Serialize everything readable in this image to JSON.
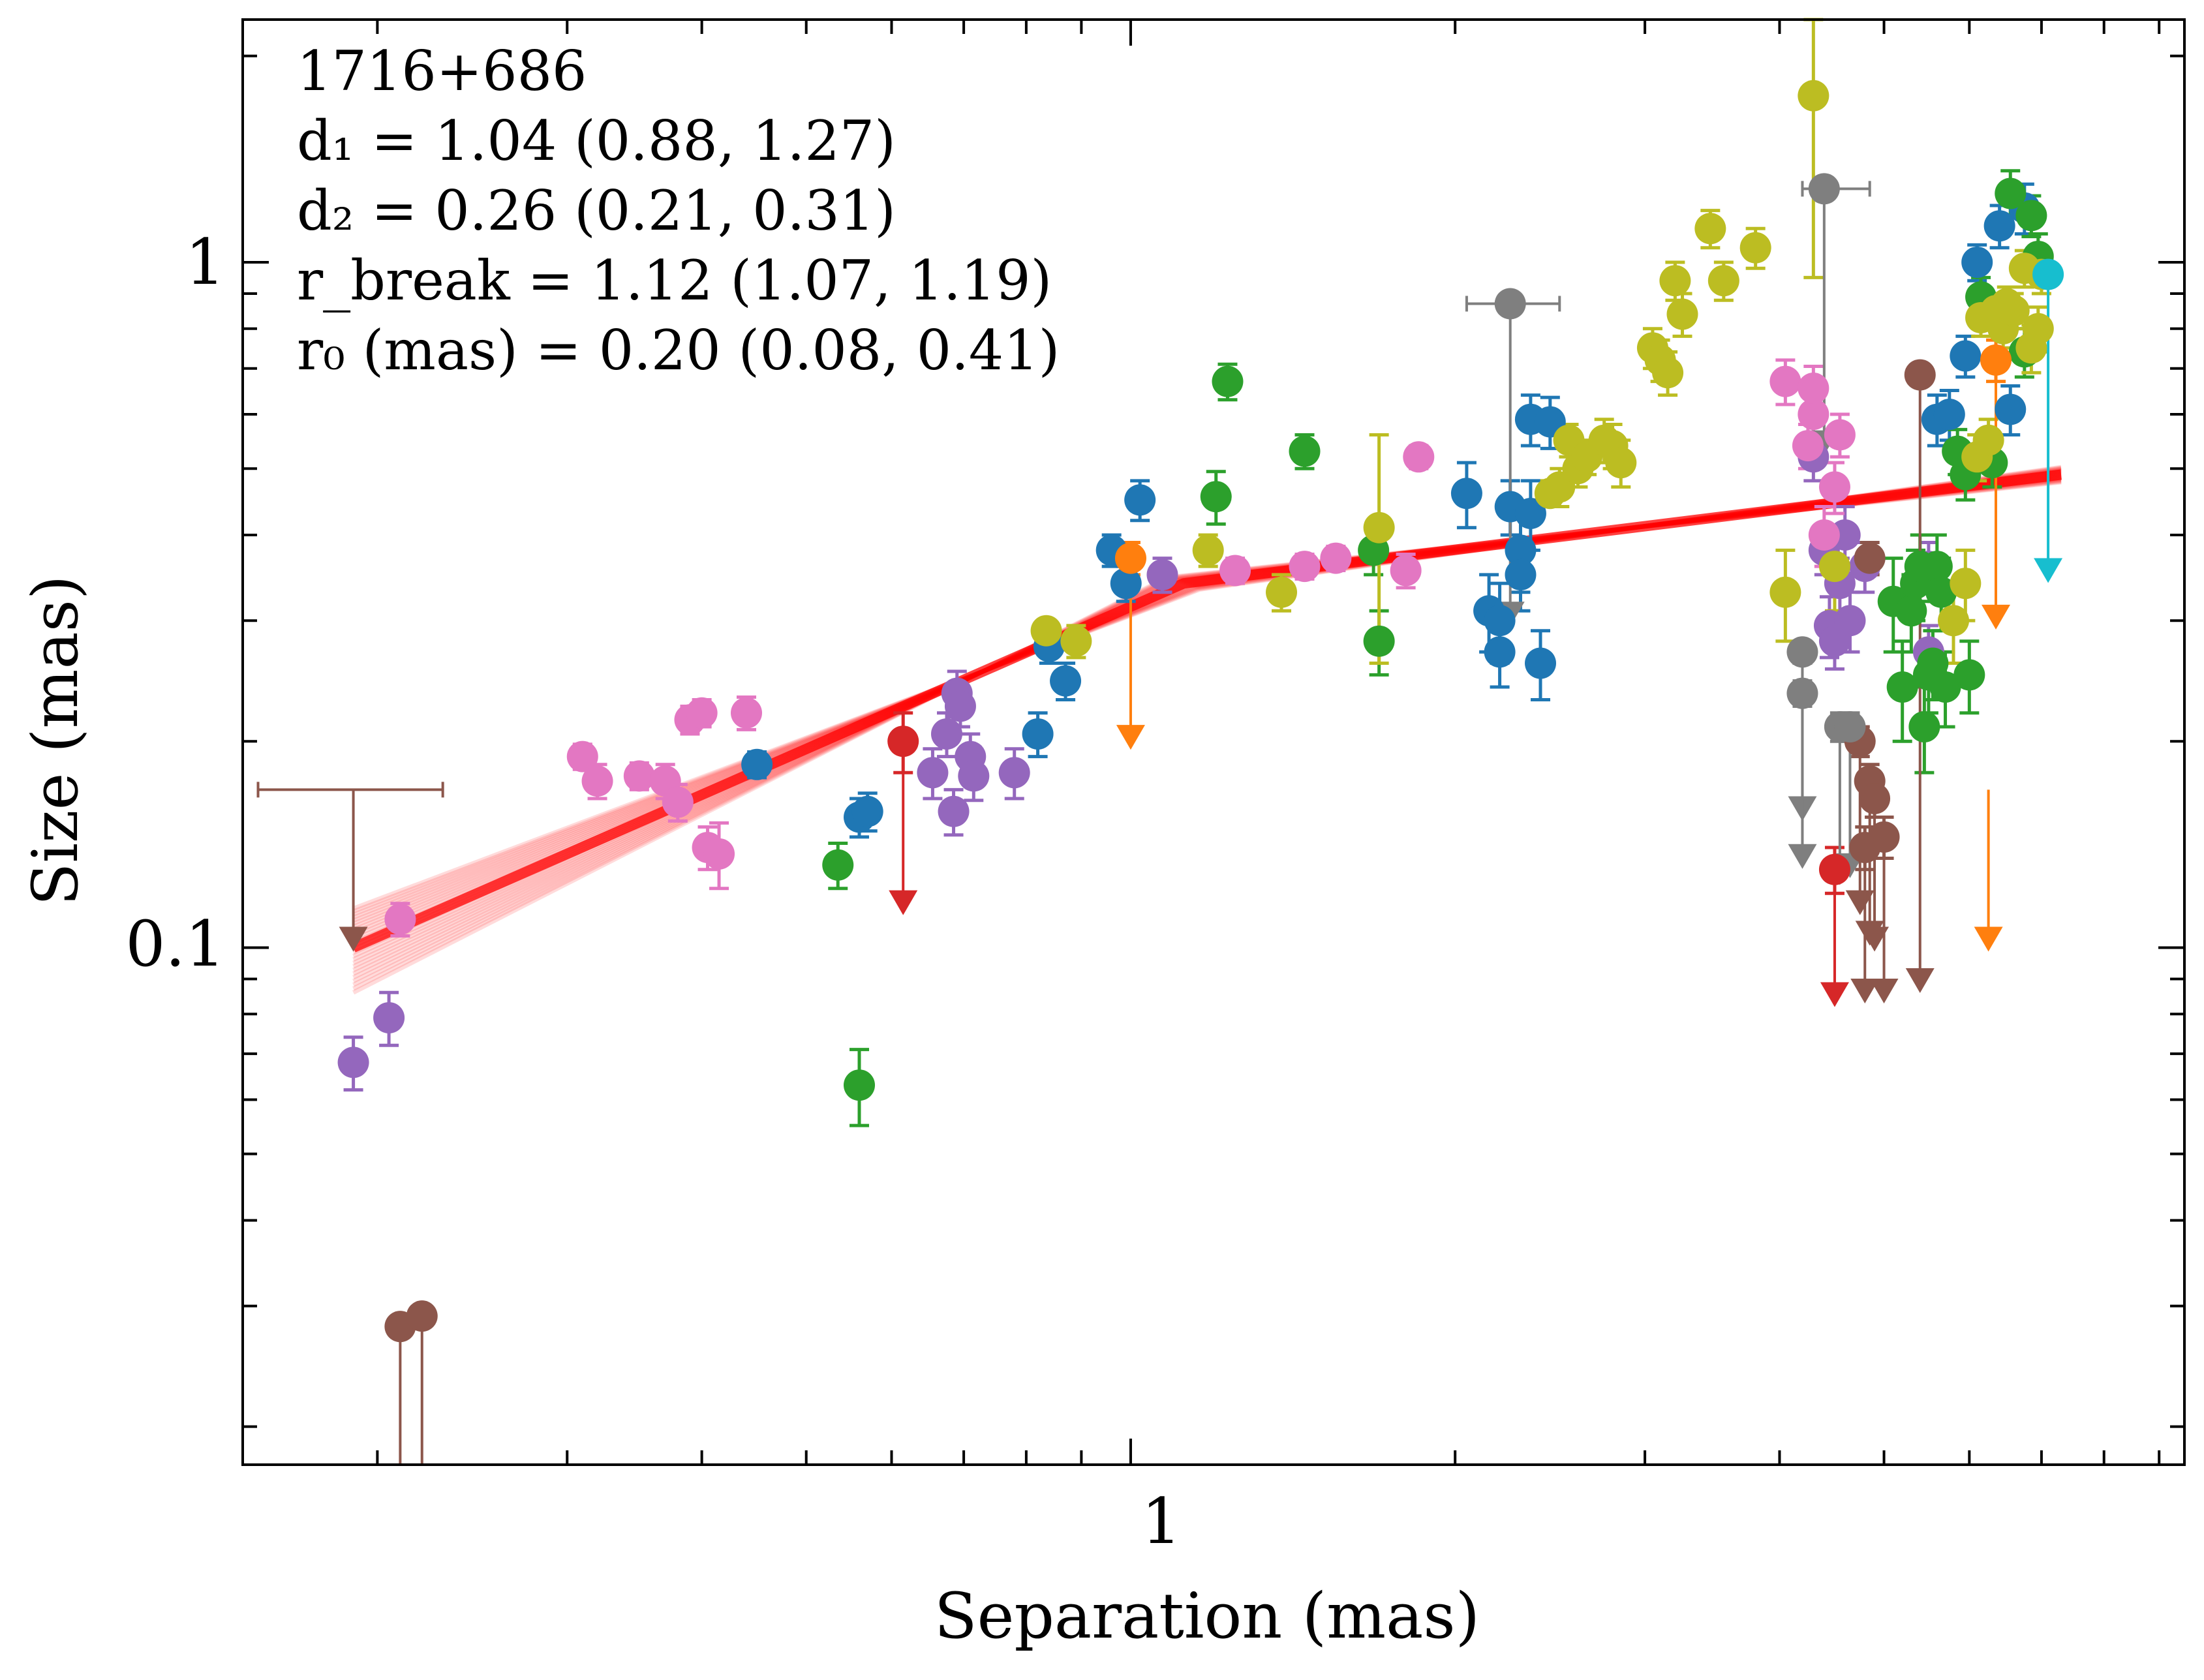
{
  "chart_data": {
    "type": "scatter",
    "source_label": "1716+686",
    "xlabel": "Separation (mas)",
    "ylabel": "Size (mas)",
    "xscale": "log",
    "yscale": "log",
    "xlim": [
      0.15,
      9.5
    ],
    "ylim": [
      0.0176,
      2.26
    ],
    "x_ticks": [
      {
        "value": 1,
        "label": "1"
      }
    ],
    "y_ticks": [
      {
        "value": 0.1,
        "label": "0.1"
      },
      {
        "value": 1,
        "label": "1"
      }
    ],
    "grid": false,
    "annotations": [
      {
        "name": "source",
        "text": "1716+686"
      },
      {
        "name": "d1",
        "text": "d₁ = 1.04 (0.88, 1.27)"
      },
      {
        "name": "d2",
        "text": "d₂ = 0.26 (0.21, 0.31)"
      },
      {
        "name": "rbreak",
        "text": "r_break = 1.12 (1.07, 1.19)"
      },
      {
        "name": "r0",
        "text": "r₀ (mas) = 0.20 (0.08, 0.41)"
      }
    ],
    "fit": {
      "model": "broken power law",
      "break_x": 1.12,
      "segments": [
        [
          0.19,
          0.1
        ],
        [
          1.12,
          0.34
        ],
        [
          7.3,
          0.49
        ]
      ],
      "color": "#ff0000"
    },
    "series": [
      {
        "name": "purple",
        "color": "#9467bd",
        "points": [
          [
            0.19,
            0.068,
            0.006
          ],
          [
            0.205,
            0.079,
            0.007
          ],
          [
            0.655,
            0.18,
            0.015
          ],
          [
            0.675,
            0.205,
            0.015
          ],
          [
            0.685,
            0.158,
            0.012
          ],
          [
            0.69,
            0.235,
            0.018
          ],
          [
            0.695,
            0.225,
            0.015
          ],
          [
            0.71,
            0.19,
            0.015
          ],
          [
            0.715,
            0.178,
            0.014
          ],
          [
            0.78,
            0.18,
            0.015
          ],
          [
            1.07,
            0.35,
            0.02
          ],
          [
            4.3,
            0.52,
            0.04
          ],
          [
            4.4,
            0.38,
            0.03
          ],
          [
            4.45,
            0.295,
            0.03
          ],
          [
            4.5,
            0.28,
            0.025
          ],
          [
            4.55,
            0.34,
            0.03
          ],
          [
            4.6,
            0.4,
            0.04
          ],
          [
            4.65,
            0.3,
            0.03
          ],
          [
            4.8,
            0.36,
            0.03
          ],
          [
            5.5,
            0.36,
            0.03
          ],
          [
            5.5,
            0.27,
            0.025
          ]
        ]
      },
      {
        "name": "pink",
        "color": "#e377c2",
        "points": [
          [
            0.21,
            0.11,
            0.006
          ],
          [
            0.31,
            0.19,
            0.008
          ],
          [
            0.32,
            0.175,
            0.01
          ],
          [
            0.35,
            0.178,
            0.008
          ],
          [
            0.37,
            0.175,
            0.01
          ],
          [
            0.38,
            0.163,
            0.01
          ],
          [
            0.39,
            0.215,
            0.01
          ],
          [
            0.4,
            0.22,
            0.01
          ],
          [
            0.405,
            0.14,
            0.01
          ],
          [
            0.415,
            0.137,
            0.015
          ],
          [
            0.44,
            0.22,
            0.012
          ],
          [
            1.25,
            0.355,
            0.015
          ],
          [
            1.45,
            0.36,
            0.015
          ],
          [
            1.55,
            0.37,
            0.015
          ],
          [
            1.8,
            0.355,
            0.02
          ],
          [
            1.85,
            0.52,
            0.02
          ],
          [
            4.05,
            0.67,
            0.05
          ],
          [
            4.25,
            0.54,
            0.04
          ],
          [
            4.3,
            0.6,
            0.05
          ],
          [
            4.3,
            0.655,
            0.05
          ],
          [
            4.4,
            0.4,
            0.04
          ],
          [
            4.5,
            0.47,
            0.04
          ],
          [
            4.55,
            0.56,
            0.04
          ]
        ]
      },
      {
        "name": "blue",
        "color": "#1f77b4",
        "points": [
          [
            0.45,
            0.185,
            0.008
          ],
          [
            0.56,
            0.155,
            0.01
          ],
          [
            0.57,
            0.158,
            0.01
          ],
          [
            0.82,
            0.205,
            0.015
          ],
          [
            0.84,
            0.275,
            0.015
          ],
          [
            0.87,
            0.245,
            0.015
          ],
          [
            0.96,
            0.38,
            0.02
          ],
          [
            0.99,
            0.34,
            0.02
          ],
          [
            1.02,
            0.45,
            0.03
          ],
          [
            2.05,
            0.46,
            0.05
          ],
          [
            2.15,
            0.31,
            0.04
          ],
          [
            2.2,
            0.3,
            0.04
          ],
          [
            2.2,
            0.27,
            0.03
          ],
          [
            2.25,
            0.44,
            0.04
          ],
          [
            2.3,
            0.38,
            0.05
          ],
          [
            2.3,
            0.35,
            0.04
          ],
          [
            2.35,
            0.43,
            0.05
          ],
          [
            2.35,
            0.59,
            0.05
          ],
          [
            2.4,
            0.26,
            0.03
          ],
          [
            2.45,
            0.585,
            0.05
          ],
          [
            5.6,
            0.59,
            0.05
          ],
          [
            5.75,
            0.6,
            0.05
          ],
          [
            5.95,
            0.73,
            0.05
          ],
          [
            6.1,
            1.0,
            0.06
          ],
          [
            6.4,
            1.13,
            0.08
          ],
          [
            6.55,
            0.61,
            0.05
          ],
          [
            6.75,
            1.2,
            0.1
          ]
        ]
      },
      {
        "name": "green",
        "color": "#2ca02c",
        "points": [
          [
            0.535,
            0.132,
            0.01
          ],
          [
            0.56,
            0.063,
            0.008
          ],
          [
            1.2,
            0.455,
            0.04
          ],
          [
            1.23,
            0.67,
            0.04
          ],
          [
            1.45,
            0.53,
            0.03
          ],
          [
            1.68,
            0.38,
            0.03
          ],
          [
            1.7,
            0.28,
            0.03
          ],
          [
            5.1,
            0.32,
            0.05
          ],
          [
            5.2,
            0.24,
            0.04
          ],
          [
            5.3,
            0.31,
            0.04
          ],
          [
            5.35,
            0.34,
            0.04
          ],
          [
            5.4,
            0.36,
            0.04
          ],
          [
            5.45,
            0.21,
            0.03
          ],
          [
            5.5,
            0.25,
            0.03
          ],
          [
            5.55,
            0.26,
            0.03
          ],
          [
            5.6,
            0.36,
            0.04
          ],
          [
            5.65,
            0.33,
            0.04
          ],
          [
            5.7,
            0.24,
            0.03
          ],
          [
            5.85,
            0.53,
            0.04
          ],
          [
            5.95,
            0.49,
            0.04
          ],
          [
            6.0,
            0.25,
            0.03
          ],
          [
            6.15,
            0.89,
            0.06
          ],
          [
            6.3,
            0.51,
            0.04
          ],
          [
            6.55,
            1.26,
            0.1
          ],
          [
            6.75,
            0.74,
            0.06
          ],
          [
            6.85,
            1.17,
            0.08
          ],
          [
            6.95,
            1.02,
            0.08
          ]
        ]
      },
      {
        "name": "olive",
        "color": "#bcbd22",
        "points": [
          [
            0.835,
            0.29,
            0.01
          ],
          [
            0.89,
            0.28,
            0.015
          ],
          [
            1.18,
            0.38,
            0.02
          ],
          [
            1.38,
            0.33,
            0.02
          ],
          [
            1.7,
            0.41,
            0.15
          ],
          [
            2.45,
            0.46,
            0.02
          ],
          [
            2.5,
            0.47,
            0.03
          ],
          [
            2.55,
            0.55,
            0.03
          ],
          [
            2.6,
            0.5,
            0.03
          ],
          [
            2.65,
            0.52,
            0.03
          ],
          [
            2.75,
            0.55,
            0.04
          ],
          [
            2.8,
            0.54,
            0.04
          ],
          [
            2.85,
            0.51,
            0.04
          ],
          [
            3.05,
            0.75,
            0.05
          ],
          [
            3.1,
            0.72,
            0.05
          ],
          [
            3.15,
            0.69,
            0.05
          ],
          [
            3.2,
            0.94,
            0.06
          ],
          [
            3.25,
            0.84,
            0.06
          ],
          [
            3.45,
            1.12,
            0.07
          ],
          [
            3.55,
            0.94,
            0.06
          ],
          [
            3.8,
            1.05,
            0.07
          ],
          [
            4.05,
            0.33,
            0.05
          ],
          [
            4.3,
            1.75,
            0.8
          ],
          [
            4.5,
            0.36,
            0.05
          ],
          [
            5.8,
            0.3,
            0.04
          ],
          [
            5.95,
            0.34,
            0.04
          ],
          [
            6.1,
            0.52,
            0.04
          ],
          [
            6.15,
            0.83,
            0.05
          ],
          [
            6.25,
            0.55,
            0.04
          ],
          [
            6.35,
            0.85,
            0.05
          ],
          [
            6.45,
            0.8,
            0.05
          ],
          [
            6.5,
            0.87,
            0.05
          ],
          [
            6.6,
            0.85,
            0.05
          ],
          [
            6.75,
            0.98,
            0.06
          ],
          [
            6.85,
            0.75,
            0.06
          ],
          [
            6.95,
            0.8,
            0.06
          ],
          [
            7.0,
            0.96,
            0.06
          ]
        ]
      },
      {
        "name": "orange",
        "color": "#ff7f0e",
        "points": [
          [
            1.0,
            0.37,
            0.02
          ],
          [
            6.35,
            0.72,
            0.05
          ]
        ]
      },
      {
        "name": "red",
        "color": "#d62728",
        "points": [
          [
            0.615,
            0.2,
            0.02
          ],
          [
            4.5,
            0.13,
            0.01
          ]
        ]
      },
      {
        "name": "brown",
        "color": "#8c564b",
        "points": [
          [
            0.21,
            0.028,
            0.001
          ],
          [
            0.22,
            0.029,
            0.001
          ],
          [
            4.75,
            0.2,
            0.01
          ],
          [
            4.8,
            0.14,
            0.01
          ],
          [
            4.85,
            0.37,
            0.02
          ],
          [
            4.85,
            0.175,
            0.01
          ],
          [
            4.9,
            0.165,
            0.01
          ],
          [
            5.0,
            0.145,
            0.01
          ],
          [
            5.4,
            0.685,
            0.02
          ]
        ]
      },
      {
        "name": "grey",
        "color": "#7f7f7f",
        "points": [
          [
            2.25,
            0.87,
            0.02
          ],
          [
            4.2,
            0.27,
            0.01
          ],
          [
            4.2,
            0.235,
            0.01
          ],
          [
            4.4,
            1.28,
            0.02
          ],
          [
            4.55,
            0.21,
            0.01
          ],
          [
            4.65,
            0.21,
            0.01
          ]
        ]
      },
      {
        "name": "cyan",
        "color": "#17becf",
        "points": [
          [
            7.1,
            0.96,
            0.02
          ]
        ]
      }
    ],
    "upper_limits": [
      {
        "color": "#8c564b",
        "x": 0.19,
        "from": 0.17,
        "to": 0.1,
        "xerr": [
          0.155,
          0.23
        ]
      },
      {
        "color": "#8c564b",
        "x": 0.21,
        "from": 0.028,
        "to": 0.0176
      },
      {
        "color": "#8c564b",
        "x": 0.22,
        "from": 0.029,
        "to": 0.0176
      },
      {
        "color": "#d62728",
        "x": 0.615,
        "from": 0.2,
        "to": 0.113
      },
      {
        "color": "#ff7f0e",
        "x": 1.0,
        "from": 0.37,
        "to": 0.197
      },
      {
        "color": "#7f7f7f",
        "x": 2.25,
        "from": 0.87,
        "to": 0.298,
        "xerr": [
          2.05,
          2.5
        ]
      },
      {
        "color": "#7f7f7f",
        "x": 4.4,
        "from": 1.28,
        "to": 0.53,
        "xerr": [
          4.2,
          4.85
        ]
      },
      {
        "color": "#7f7f7f",
        "x": 4.2,
        "from": 0.27,
        "to": 0.155
      },
      {
        "color": "#7f7f7f",
        "x": 4.2,
        "from": 0.235,
        "to": 0.132
      },
      {
        "color": "#7f7f7f",
        "x": 4.55,
        "from": 0.21,
        "to": 0.125
      },
      {
        "color": "#7f7f7f",
        "x": 4.65,
        "from": 0.21,
        "to": 0.128
      },
      {
        "color": "#d62728",
        "x": 4.5,
        "from": 0.13,
        "to": 0.083
      },
      {
        "color": "#8c564b",
        "x": 4.75,
        "from": 0.2,
        "to": 0.113
      },
      {
        "color": "#8c564b",
        "x": 4.8,
        "from": 0.14,
        "to": 0.084
      },
      {
        "color": "#8c564b",
        "x": 4.85,
        "from": 0.175,
        "to": 0.102
      },
      {
        "color": "#8c564b",
        "x": 4.9,
        "from": 0.165,
        "to": 0.1
      },
      {
        "color": "#8c564b",
        "x": 5.0,
        "from": 0.145,
        "to": 0.084
      },
      {
        "color": "#8c564b",
        "x": 5.4,
        "from": 0.685,
        "to": 0.087
      },
      {
        "color": "#ff7f0e",
        "x": 6.35,
        "from": 0.72,
        "to": 0.295
      },
      {
        "color": "#ff7f0e",
        "x": 6.25,
        "from": 0.17,
        "to": 0.1
      },
      {
        "color": "#17becf",
        "x": 7.1,
        "from": 0.96,
        "to": 0.345
      },
      {
        "color": "#1f77b4",
        "x": 6.85,
        "from": 0.47,
        "to": 0.47
      }
    ]
  }
}
